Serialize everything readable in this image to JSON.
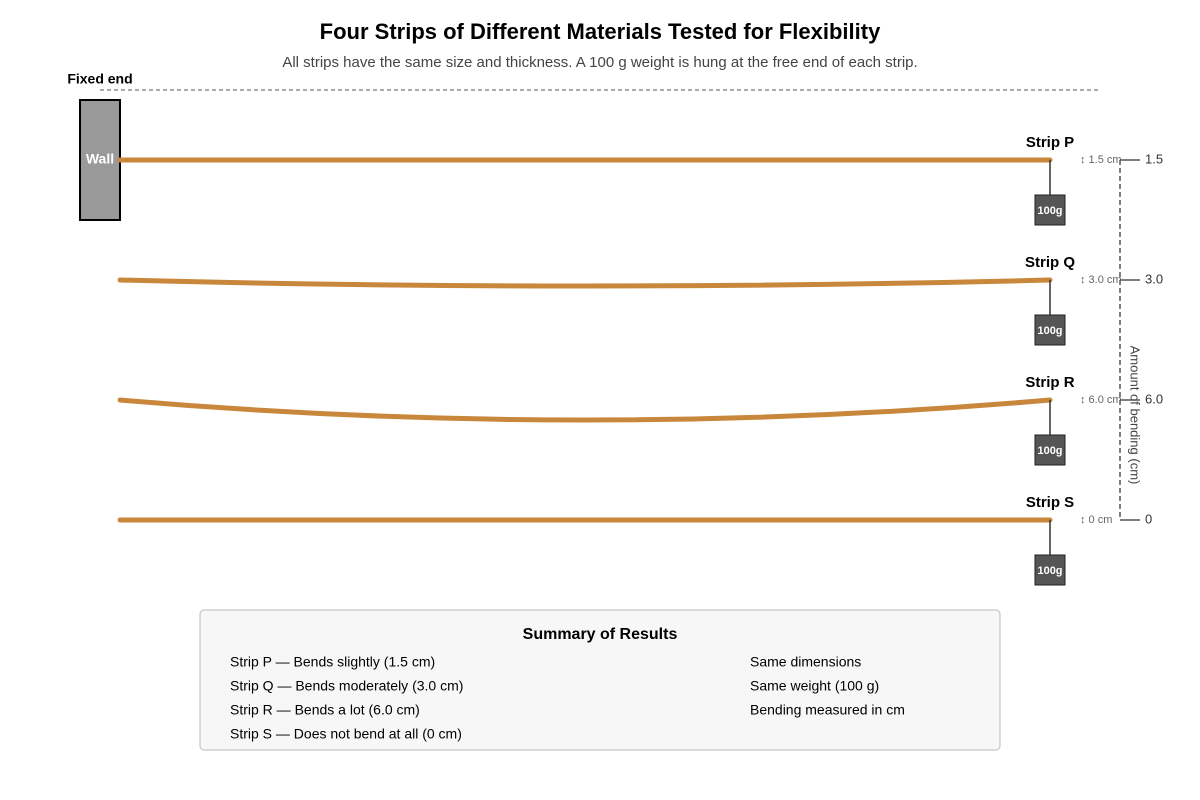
{
  "title": "Four Strips of Different Materials Tested for Flexibility",
  "subtitle": "All strips have the same size and thickness. A 100 g weight is hung at the free end of each strip.",
  "fixed_end_label": "Fixed end",
  "wall_label": "Wall",
  "axis_title": "Amount of bending (cm)",
  "strips": [
    {
      "name": "Strip P",
      "bend_label": "↕ 1.5 cm",
      "weight_label": "100g",
      "axis_label": "1.5"
    },
    {
      "name": "Strip Q",
      "bend_label": "↕ 3.0 cm",
      "weight_label": "100g",
      "axis_label": "3.0"
    },
    {
      "name": "Strip R",
      "bend_label": "↕ 6.0 cm",
      "weight_label": "100g",
      "axis_label": "6.0"
    },
    {
      "name": "Strip S",
      "bend_label": "↕ 0 cm",
      "weight_label": "100g",
      "axis_label": "0"
    }
  ],
  "summary": {
    "title": "Summary of Results",
    "items": [
      "Strip P — Bends slightly (1.5 cm)",
      "Strip Q — Bends moderately (3.0 cm)",
      "Strip R — Bends a lot (6.0 cm)",
      "Strip S — Does not bend at all (0 cm)"
    ],
    "notes": [
      "Same dimensions",
      "Same weight (100 g)",
      "Bending measured in cm"
    ]
  }
}
